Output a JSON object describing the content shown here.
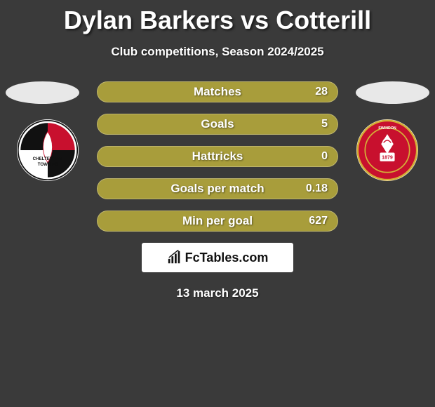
{
  "title": "Dylan Barkers vs Cotterill",
  "subtitle": "Club competitions, Season 2024/2025",
  "date": "13 march 2025",
  "watermark": "FcTables.com",
  "colors": {
    "background": "#3a3a3a",
    "bar_fill": "#a89d3b",
    "bar_fill_alt": "#a89d3b",
    "oval": "#e8e8e8",
    "text": "#ffffff"
  },
  "bars": [
    {
      "label": "Matches",
      "value": "28"
    },
    {
      "label": "Goals",
      "value": "5"
    },
    {
      "label": "Hattricks",
      "value": "0"
    },
    {
      "label": "Goals per match",
      "value": "0.18"
    },
    {
      "label": "Min per goal",
      "value": "627"
    }
  ],
  "bar_style": {
    "height": 30,
    "radius": 15,
    "gap": 16,
    "font_size": 17
  },
  "crest_left": {
    "name": "Cheltenham Town FC",
    "primary": "#c8102e",
    "secondary": "#111111",
    "tertiary": "#ffffff"
  },
  "crest_right": {
    "name": "Swindon Town FC",
    "primary": "#c8102e",
    "secondary": "#ffffff",
    "accent": "#d4af37"
  }
}
